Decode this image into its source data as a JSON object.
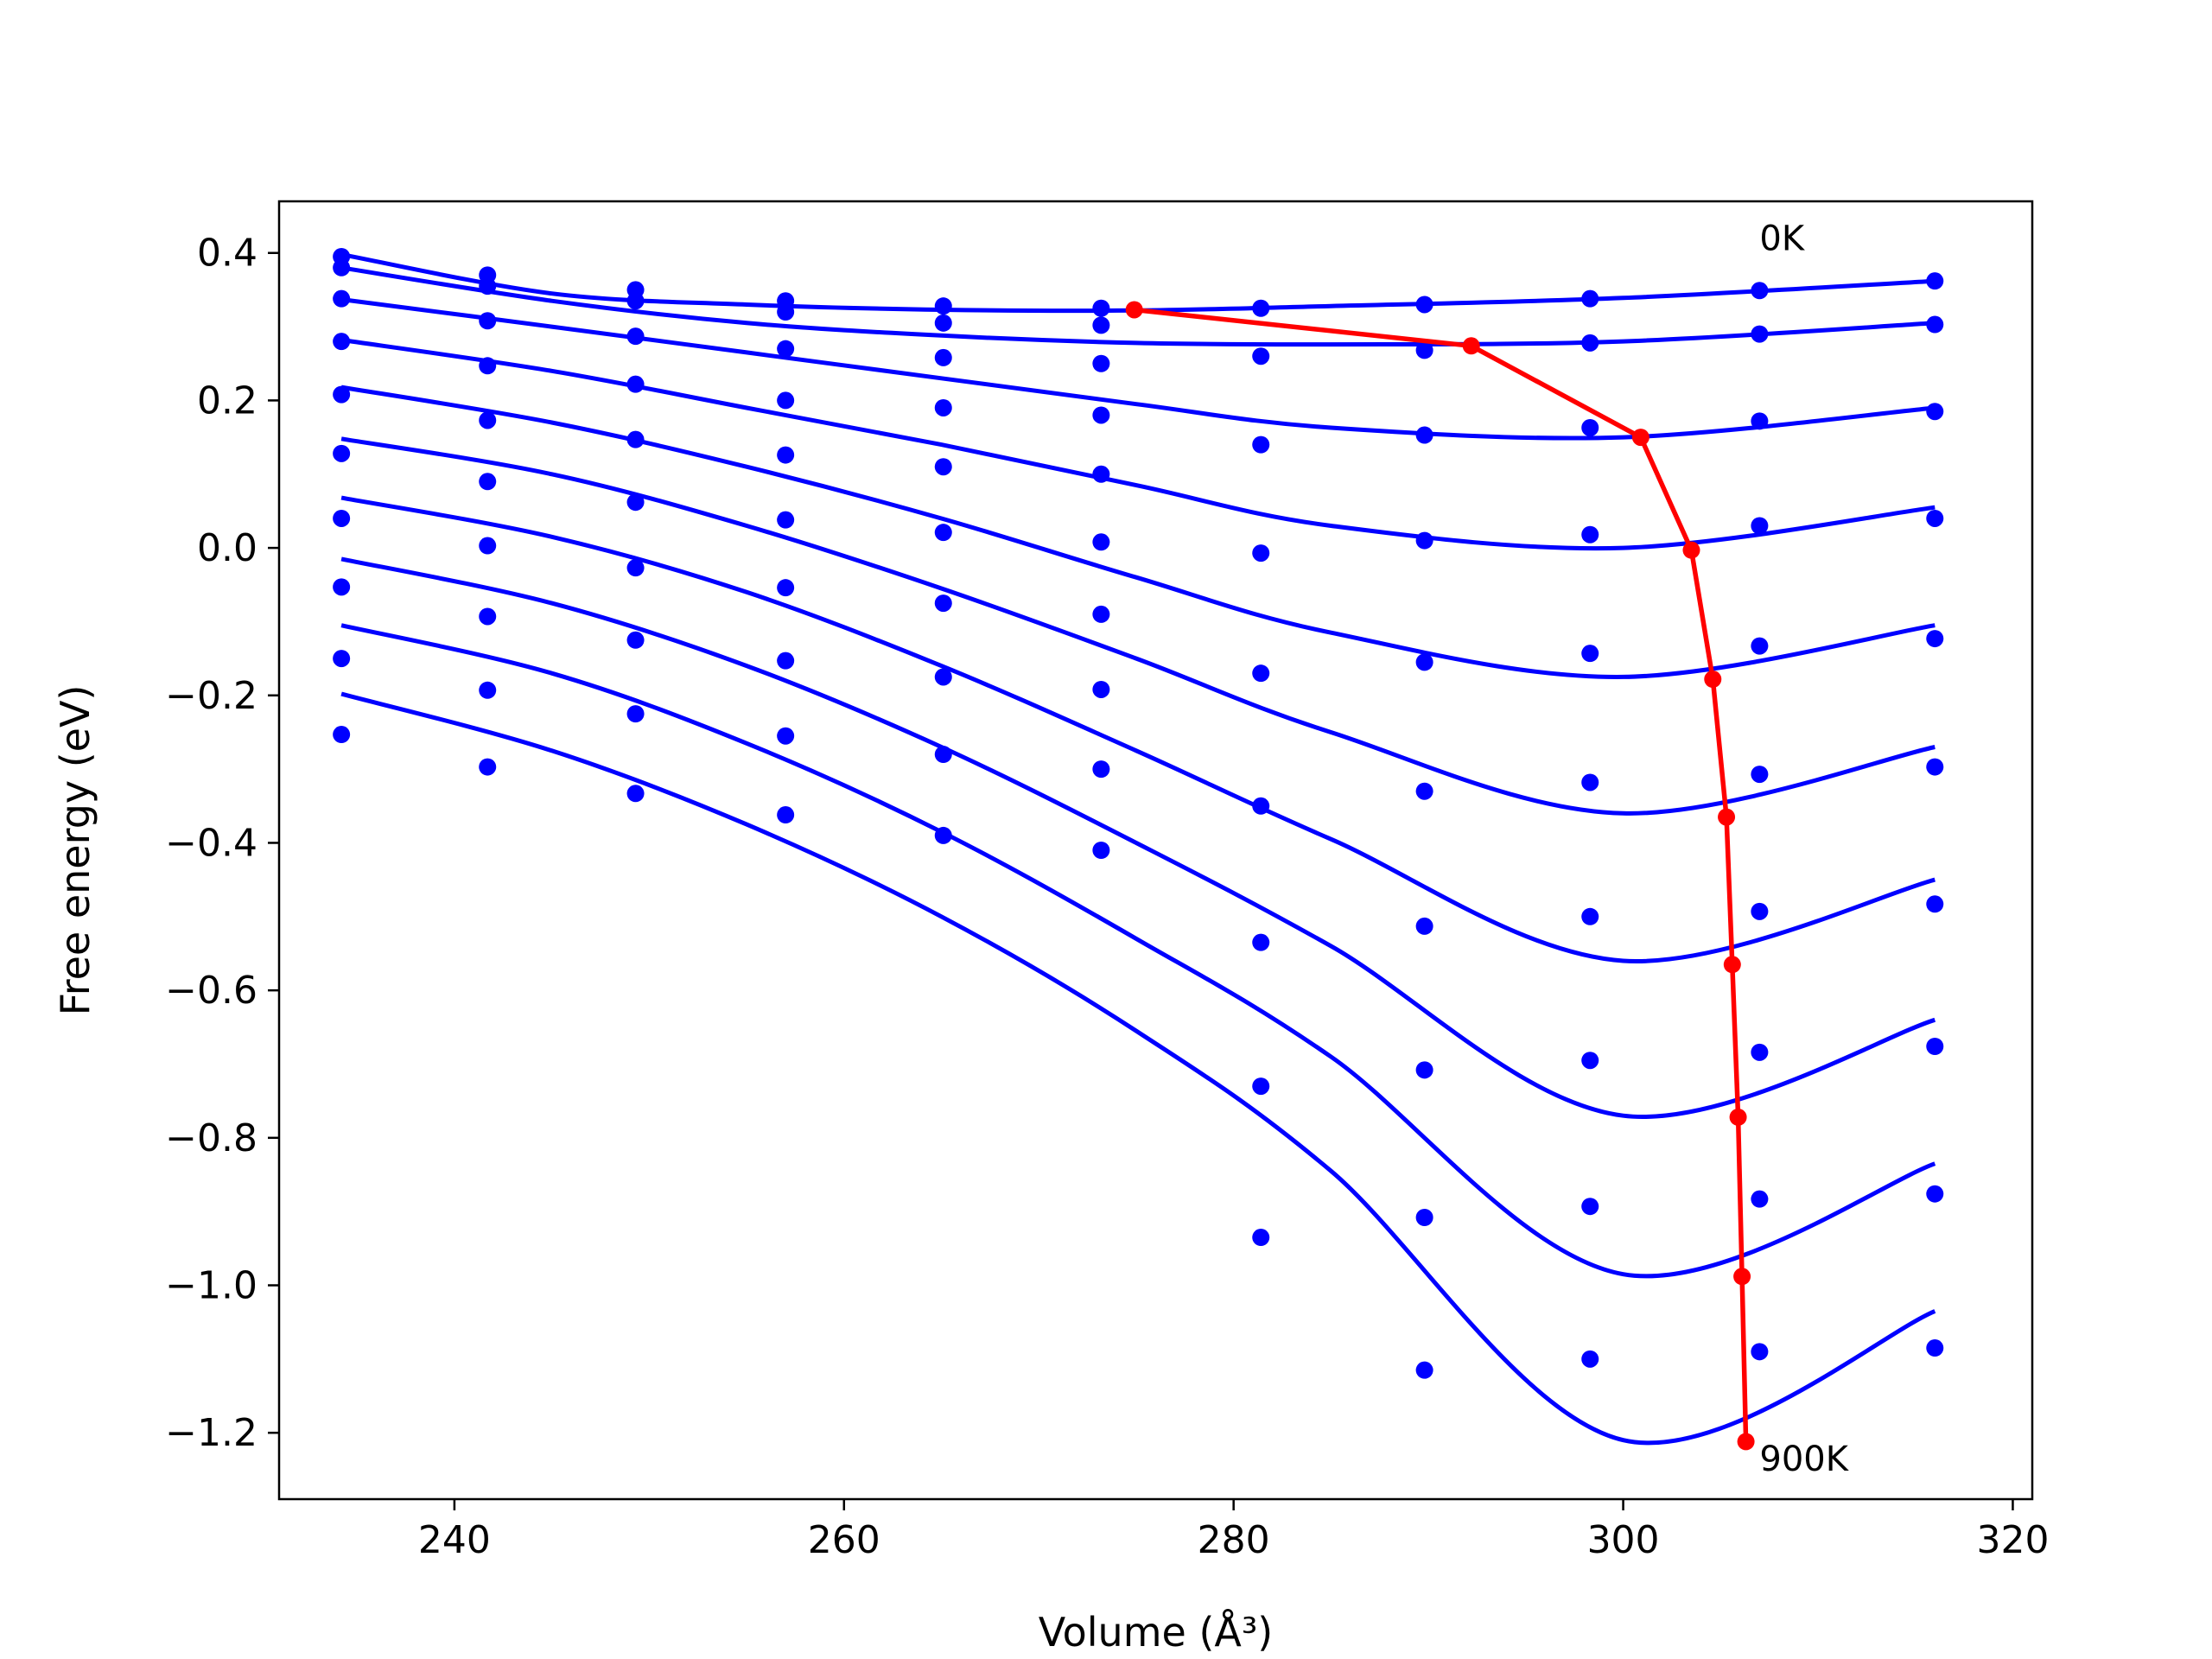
{
  "chart_data": {
    "type": "scatter",
    "xlabel": "Volume (Å³)",
    "ylabel": "Free energy (eV)",
    "xlim": [
      231,
      321
    ],
    "ylim": [
      -1.29,
      0.47
    ],
    "xticks": [
      240,
      260,
      280,
      300,
      320
    ],
    "yticks": [
      0.4,
      0.2,
      0.0,
      -0.2,
      -0.4,
      -0.6,
      -0.8,
      -1.0,
      -1.2
    ],
    "ytick_labels": [
      "0.4",
      "0.2",
      "0.0",
      "−0.2",
      "−0.4",
      "−0.6",
      "−0.8",
      "−1.0",
      "−1.2"
    ],
    "grid": false,
    "annotations": [
      {
        "text": "0K",
        "x": 307.0,
        "y": 0.42
      },
      {
        "text": "900K",
        "x": 307.0,
        "y": -1.235
      }
    ],
    "colors": {
      "points": "#0000ff",
      "fits": "#0000ff",
      "minima": "#ff0000"
    },
    "points_x": [
      234.2,
      241.7,
      249.3,
      257.0,
      265.1,
      273.2,
      281.4,
      289.8,
      298.3,
      307.0,
      316.0
    ],
    "series": [
      {
        "points": [
          0.395,
          0.37,
          0.35,
          0.335,
          0.328,
          0.325,
          0.325,
          0.33,
          0.338,
          0.349,
          0.362
        ],
        "fit": [
          0.398,
          0.345,
          0.33,
          0.323,
          0.322,
          0.328,
          0.339,
          0.362
        ]
      },
      {
        "points": [
          0.38,
          0.355,
          0.335,
          0.32,
          0.305,
          0.302,
          null,
          0.268,
          0.278,
          0.29,
          0.303
        ],
        "fit": [
          0.38,
          0.335,
          0.305,
          0.288,
          0.278,
          0.276,
          0.28,
          0.305
        ]
      },
      {
        "points": [
          0.338,
          0.308,
          0.287,
          0.27,
          0.258,
          0.25,
          0.26,
          0.153,
          0.163,
          0.172,
          0.185
        ],
        "fit": [
          0.337,
          0.3,
          0.265,
          0.23,
          0.195,
          0.163,
          0.15,
          0.19
        ]
      },
      {
        "points": [
          0.28,
          0.247,
          0.222,
          0.2,
          0.19,
          0.18,
          0.14,
          0.01,
          0.018,
          0.03,
          0.04
        ],
        "fit": [
          0.282,
          0.24,
          0.19,
          0.14,
          0.085,
          0.03,
          0.0,
          0.055
        ]
      },
      {
        "points": [
          0.208,
          0.173,
          0.147,
          0.126,
          0.11,
          0.1,
          -0.007,
          -0.155,
          -0.143,
          -0.133,
          -0.123
        ],
        "fit": [
          0.218,
          0.17,
          0.11,
          0.04,
          -0.04,
          -0.115,
          -0.175,
          -0.105
        ]
      },
      {
        "points": [
          0.128,
          0.09,
          0.062,
          0.038,
          0.021,
          0.008,
          -0.17,
          -0.33,
          -0.318,
          -0.307,
          -0.297
        ],
        "fit": [
          0.148,
          0.1,
          0.03,
          -0.055,
          -0.15,
          -0.25,
          -0.36,
          -0.27
        ]
      },
      {
        "points": [
          0.04,
          0.003,
          -0.027,
          -0.054,
          -0.075,
          -0.09,
          -0.35,
          -0.513,
          -0.5,
          -0.493,
          -0.483
        ],
        "fit": [
          0.068,
          0.015,
          -0.06,
          -0.16,
          -0.275,
          -0.395,
          -0.56,
          -0.45
        ]
      },
      {
        "points": [
          -0.053,
          -0.093,
          -0.125,
          -0.153,
          -0.175,
          -0.192,
          -0.535,
          -0.708,
          -0.695,
          -0.684,
          -0.676
        ],
        "fit": [
          -0.015,
          -0.075,
          -0.16,
          -0.27,
          -0.4,
          -0.54,
          -0.77,
          -0.64
        ]
      },
      {
        "points": [
          -0.15,
          -0.193,
          -0.225,
          -0.255,
          -0.28,
          -0.3,
          -0.73,
          -0.908,
          -0.893,
          -0.883,
          -0.876
        ],
        "fit": [
          -0.105,
          -0.17,
          -0.265,
          -0.385,
          -0.53,
          -0.69,
          -0.985,
          -0.835
        ]
      },
      {
        "points": [
          -0.253,
          -0.297,
          -0.333,
          -0.362,
          -0.39,
          -0.41,
          -0.935,
          -1.115,
          -1.1,
          -1.09,
          -1.085
        ],
        "fit": [
          -0.198,
          -0.275,
          -0.375,
          -0.5,
          -0.655,
          -0.845,
          -1.21,
          -1.035
        ]
      }
    ],
    "minima": {
      "x": [
        274.9,
        292.2,
        300.9,
        303.5,
        304.6,
        305.3,
        305.6,
        305.9,
        306.1,
        306.3
      ],
      "y": [
        0.323,
        0.274,
        0.15,
        -0.003,
        -0.178,
        -0.365,
        -0.565,
        -0.772,
        -0.988,
        -1.212
      ]
    }
  }
}
